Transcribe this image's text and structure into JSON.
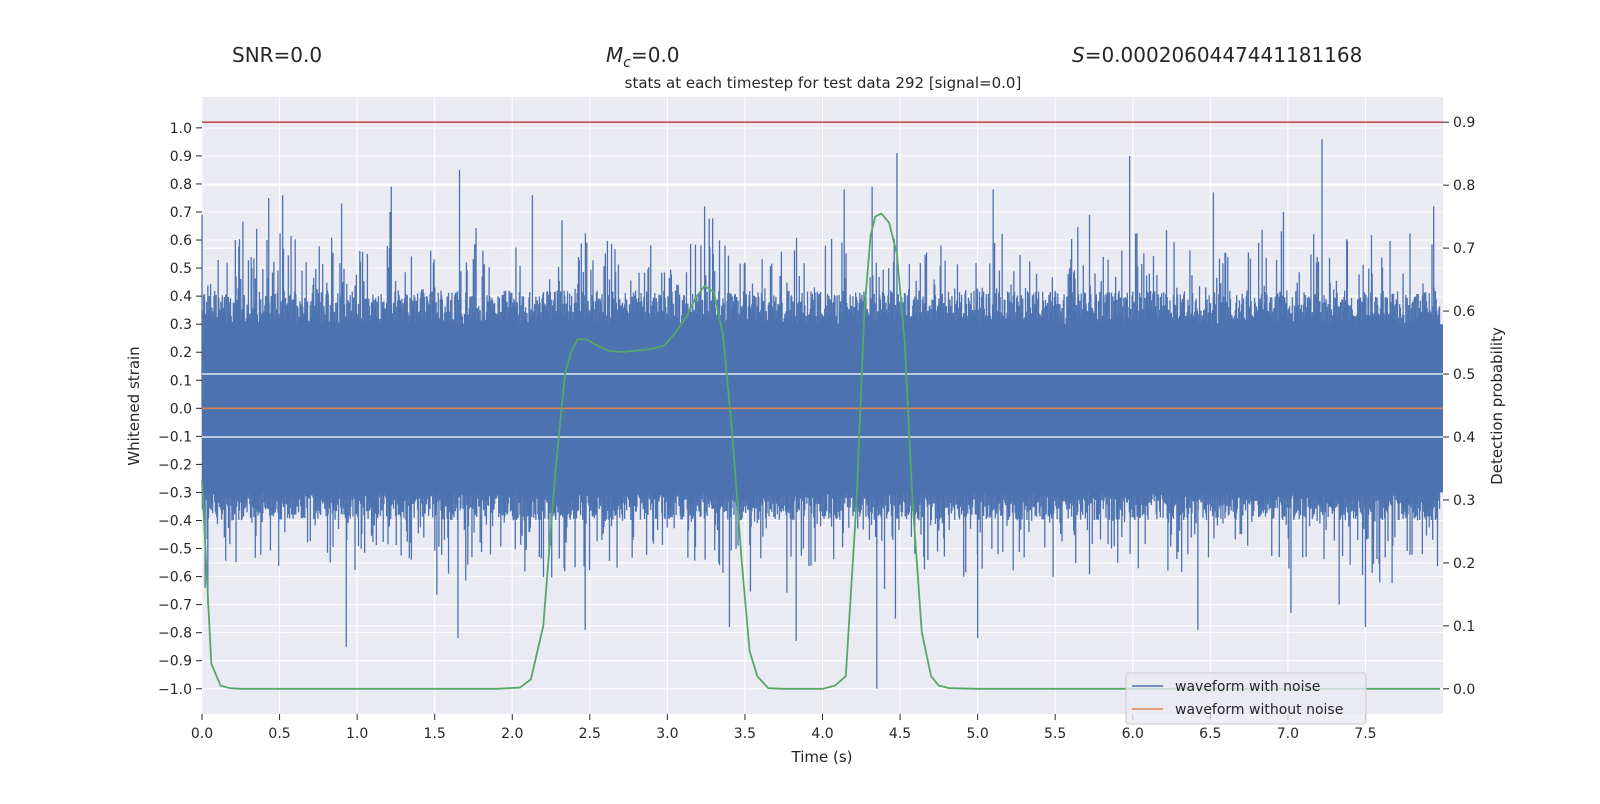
{
  "chart_data": {
    "type": "line",
    "title": "stats at each timestep for test data 292 [signal=0.0]",
    "header": {
      "snr": "SNR=0.0",
      "mc_symbol": "M",
      "mc_sub": "c",
      "mc_value": "=0.0",
      "s_symbol": "S",
      "s_value": "=0.0002060447441181168"
    },
    "xlabel": "Time (s)",
    "ylabel_left": "Whitened strain",
    "ylabel_right": "Detection probability",
    "xlim": [
      0.0,
      8.0
    ],
    "ylim_left": [
      -1.09,
      1.11
    ],
    "ylim_right": [
      -0.04,
      0.94
    ],
    "x_ticks": [
      "0.0",
      "0.5",
      "1.0",
      "1.5",
      "2.0",
      "2.5",
      "3.0",
      "3.5",
      "4.0",
      "4.5",
      "5.0",
      "5.5",
      "6.0",
      "6.5",
      "7.0",
      "7.5"
    ],
    "y_ticks_left": [
      "1.0",
      "0.9",
      "0.8",
      "0.7",
      "0.6",
      "0.5",
      "0.4",
      "0.3",
      "0.2",
      "0.1",
      "0.0",
      "-0.1",
      "-0.2",
      "-0.3",
      "-0.4",
      "-0.5",
      "-0.6",
      "-0.7",
      "-0.8",
      "-0.9",
      "-1.0"
    ],
    "y_ticks_right": [
      "0.9",
      "0.8",
      "0.7",
      "0.6",
      "0.5",
      "0.4",
      "0.3",
      "0.2",
      "0.1",
      "0.0"
    ],
    "threshold": 0.9,
    "noisy_waveform": {
      "name": "waveform with noise",
      "color": "#4c72b0",
      "core_amplitude": 0.3,
      "peaks_up": [
        {
          "t": 0.0,
          "v": 0.69
        },
        {
          "t": 0.43,
          "v": 0.75
        },
        {
          "t": 0.52,
          "v": 0.76
        },
        {
          "t": 0.9,
          "v": 0.73
        },
        {
          "t": 1.22,
          "v": 0.79
        },
        {
          "t": 1.66,
          "v": 0.85
        },
        {
          "t": 2.13,
          "v": 0.76
        },
        {
          "t": 3.24,
          "v": 0.72
        },
        {
          "t": 4.14,
          "v": 0.78
        },
        {
          "t": 4.32,
          "v": 0.79
        },
        {
          "t": 4.48,
          "v": 0.91
        },
        {
          "t": 5.1,
          "v": 0.78
        },
        {
          "t": 5.98,
          "v": 0.9
        },
        {
          "t": 6.52,
          "v": 0.77
        },
        {
          "t": 7.22,
          "v": 0.96
        },
        {
          "t": 7.94,
          "v": 0.72
        }
      ],
      "peaks_down": [
        {
          "t": 0.02,
          "v": -0.64
        },
        {
          "t": 0.93,
          "v": -0.85
        },
        {
          "t": 1.65,
          "v": -0.82
        },
        {
          "t": 2.47,
          "v": -0.79
        },
        {
          "t": 3.4,
          "v": -0.78
        },
        {
          "t": 3.83,
          "v": -0.83
        },
        {
          "t": 4.35,
          "v": -1.0
        },
        {
          "t": 4.47,
          "v": -0.75
        },
        {
          "t": 5.0,
          "v": -0.82
        },
        {
          "t": 6.42,
          "v": -0.79
        },
        {
          "t": 7.02,
          "v": -0.73
        },
        {
          "t": 7.5,
          "v": -0.78
        }
      ]
    },
    "clean_waveform": {
      "name": "waveform without noise",
      "color": "#dd8452",
      "value": 0.0
    },
    "detection_probability": {
      "name": "Detection probability",
      "color": "#55a868",
      "x": [
        0.0,
        0.06,
        0.12,
        0.18,
        0.25,
        0.5,
        1.0,
        1.5,
        1.9,
        2.05,
        2.12,
        2.2,
        2.28,
        2.34,
        2.38,
        2.42,
        2.48,
        2.55,
        2.62,
        2.7,
        2.8,
        2.9,
        2.98,
        3.05,
        3.12,
        3.18,
        3.24,
        3.3,
        3.36,
        3.42,
        3.48,
        3.53,
        3.58,
        3.65,
        3.75,
        4.0,
        4.08,
        4.15,
        4.22,
        4.27,
        4.31,
        4.34,
        4.38,
        4.43,
        4.48,
        4.53,
        4.58,
        4.64,
        4.7,
        4.75,
        4.82,
        5.0,
        5.5,
        6.0,
        7.0,
        7.98
      ],
      "y": [
        0.33,
        0.04,
        0.005,
        0.001,
        0.0,
        0.0,
        0.0,
        0.0,
        0.0,
        0.002,
        0.015,
        0.1,
        0.35,
        0.5,
        0.535,
        0.555,
        0.555,
        0.545,
        0.537,
        0.535,
        0.537,
        0.54,
        0.545,
        0.565,
        0.59,
        0.62,
        0.64,
        0.63,
        0.56,
        0.4,
        0.2,
        0.06,
        0.02,
        0.001,
        0.0,
        0.0,
        0.005,
        0.02,
        0.3,
        0.6,
        0.72,
        0.75,
        0.755,
        0.74,
        0.69,
        0.55,
        0.3,
        0.09,
        0.02,
        0.005,
        0.001,
        0.0,
        0.0,
        0.0,
        0.0,
        0.0
      ],
      "ylim": [
        -0.04,
        0.94
      ]
    },
    "legend": {
      "position": "lower-right",
      "entries": [
        "waveform with noise",
        "waveform without noise"
      ]
    },
    "colors": {
      "axes_background": "#eaeaf2",
      "grid": "#ffffff",
      "threshold_line": "#c44e52"
    }
  }
}
